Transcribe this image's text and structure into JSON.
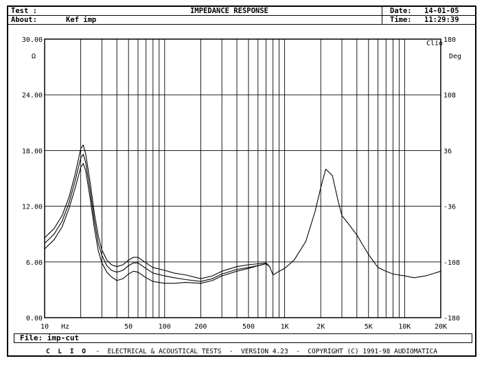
{
  "header": {
    "test_label": "Test :",
    "about_label": "About:",
    "about_value": "Kef imp",
    "title": "IMPEDANCE RESPONSE",
    "date_label": "Date:",
    "date_value": "14-01-05",
    "time_label": "Time:",
    "time_value": "11:29:39"
  },
  "file": {
    "label": "File:",
    "value": "imp-cut"
  },
  "footer": {
    "brand": "C L I O",
    "text": "-  ELECTRICAL & ACOUSTICAL TESTS  -  VERSION 4.23  -  COPYRIGHT (C) 1991-98 AUDIOMATICA"
  },
  "chart_data": {
    "type": "line",
    "title": "IMPEDANCE RESPONSE",
    "brand_mark": "Clio",
    "x_scale": "log",
    "xlim": [
      10,
      20000
    ],
    "x_unit": "Hz",
    "x_ticks": [
      {
        "v": 10,
        "label": "10"
      },
      {
        "v": 50,
        "label": "50"
      },
      {
        "v": 100,
        "label": "100"
      },
      {
        "v": 200,
        "label": "200"
      },
      {
        "v": 500,
        "label": "500"
      },
      {
        "v": 1000,
        "label": "1K"
      },
      {
        "v": 2000,
        "label": "2K"
      },
      {
        "v": 5000,
        "label": "5K"
      },
      {
        "v": 10000,
        "label": "10K"
      },
      {
        "v": 20000,
        "label": "20K"
      }
    ],
    "ylim_left": [
      0,
      30
    ],
    "y_unit_left": "Ω",
    "y_ticks_left": [
      "0.00",
      "6.00",
      "12.00",
      "18.00",
      "24.00",
      "30.00"
    ],
    "ylim_right": [
      -180,
      180
    ],
    "y_unit_right": "Deg",
    "y_ticks_right": [
      "-180",
      "-108",
      "-36",
      "36",
      "108",
      "180"
    ],
    "grid": true,
    "series": [
      {
        "x": [
          10,
          12,
          14,
          16,
          18,
          20,
          21,
          22,
          24,
          26,
          28,
          30,
          33,
          36,
          40,
          45,
          50,
          55,
          60,
          70,
          80,
          100,
          120,
          150,
          200,
          250,
          300,
          400,
          500,
          600,
          700,
          750,
          800,
          900,
          1000,
          1200,
          1500,
          1800,
          2000,
          2200,
          2500,
          2800,
          3000,
          3500,
          4000,
          5000,
          6000,
          7000,
          8000,
          10000,
          12000,
          15000,
          20000
        ],
        "y": [
          8.6,
          9.6,
          11.0,
          13.0,
          15.5,
          18.2,
          18.6,
          17.6,
          14.5,
          11.2,
          8.8,
          7.3,
          6.2,
          5.7,
          5.5,
          5.7,
          6.2,
          6.5,
          6.5,
          5.9,
          5.4,
          5.1,
          4.8,
          4.6,
          4.2,
          4.5,
          5.0,
          5.5,
          5.7,
          5.8,
          5.9,
          5.5,
          4.6,
          5.0,
          5.3,
          6.2,
          8.2,
          11.5,
          14.0,
          16.0,
          15.3,
          12.5,
          11.0,
          9.9,
          8.9,
          6.8,
          5.4,
          5.0,
          4.7,
          4.5,
          4.3,
          4.5,
          5.0
        ]
      },
      {
        "x": [
          10,
          12,
          14,
          16,
          18,
          20,
          21,
          22,
          24,
          26,
          28,
          30,
          33,
          36,
          40,
          45,
          50,
          55,
          60,
          70,
          80,
          100,
          120,
          150,
          200,
          250,
          300,
          400,
          500,
          600,
          700,
          750
        ],
        "y": [
          8.0,
          9.0,
          10.4,
          12.4,
          14.8,
          17.2,
          17.6,
          16.7,
          13.6,
          10.4,
          8.0,
          6.7,
          5.6,
          5.1,
          4.9,
          5.1,
          5.6,
          5.9,
          5.9,
          5.3,
          4.8,
          4.5,
          4.3,
          4.1,
          3.9,
          4.2,
          4.7,
          5.2,
          5.4,
          5.6,
          5.8,
          5.5
        ]
      },
      {
        "x": [
          10,
          12,
          14,
          16,
          18,
          20,
          21,
          22,
          24,
          26,
          28,
          30,
          33,
          36,
          40,
          45,
          50,
          55,
          60,
          70,
          80,
          100,
          120,
          150,
          200,
          250,
          300,
          400,
          500,
          600,
          700,
          750
        ],
        "y": [
          7.4,
          8.4,
          9.8,
          11.8,
          14.0,
          16.2,
          16.6,
          15.8,
          12.8,
          9.6,
          7.2,
          5.9,
          4.9,
          4.4,
          4.0,
          4.2,
          4.7,
          5.0,
          4.9,
          4.3,
          3.9,
          3.7,
          3.7,
          3.8,
          3.7,
          4.0,
          4.5,
          5.0,
          5.3,
          5.6,
          5.8,
          5.5
        ]
      }
    ]
  }
}
